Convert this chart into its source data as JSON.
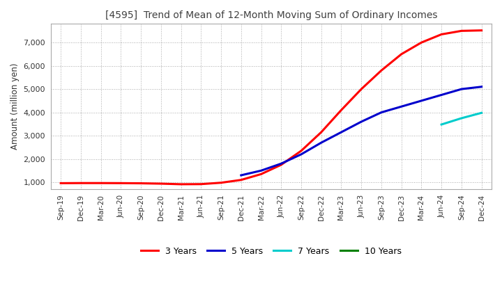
{
  "title": "[4595]  Trend of Mean of 12-Month Moving Sum of Ordinary Incomes",
  "ylabel": "Amount (million yen)",
  "background_color": "#ffffff",
  "grid_color": "#aaaaaa",
  "title_color": "#404040",
  "ylim": [
    700,
    7800
  ],
  "yticks": [
    1000,
    2000,
    3000,
    4000,
    5000,
    6000,
    7000
  ],
  "lines": [
    {
      "label": "3 Years",
      "color": "#ff0000",
      "data": [
        [
          "Sep-19",
          960
        ],
        [
          "Dec-19",
          965
        ],
        [
          "Mar-20",
          965
        ],
        [
          "Jun-20",
          962
        ],
        [
          "Sep-20",
          955
        ],
        [
          "Dec-20",
          940
        ],
        [
          "Mar-21",
          915
        ],
        [
          "Jun-21",
          920
        ],
        [
          "Sep-21",
          980
        ],
        [
          "Dec-21",
          1100
        ],
        [
          "Mar-22",
          1350
        ],
        [
          "Jun-22",
          1750
        ],
        [
          "Sep-22",
          2350
        ],
        [
          "Dec-22",
          3150
        ],
        [
          "Mar-23",
          4100
        ],
        [
          "Jun-23",
          5000
        ],
        [
          "Sep-23",
          5800
        ],
        [
          "Dec-23",
          6500
        ],
        [
          "Mar-24",
          7000
        ],
        [
          "Jun-24",
          7350
        ],
        [
          "Sep-24",
          7500
        ],
        [
          "Dec-24",
          7520
        ]
      ]
    },
    {
      "label": "5 Years",
      "color": "#0000cc",
      "data": [
        [
          "Dec-21",
          1300
        ],
        [
          "Mar-22",
          1500
        ],
        [
          "Jun-22",
          1800
        ],
        [
          "Sep-22",
          2200
        ],
        [
          "Dec-22",
          2700
        ],
        [
          "Mar-23",
          3150
        ],
        [
          "Jun-23",
          3600
        ],
        [
          "Sep-23",
          4000
        ],
        [
          "Dec-23",
          4250
        ],
        [
          "Mar-24",
          4500
        ],
        [
          "Jun-24",
          4750
        ],
        [
          "Sep-24",
          5000
        ],
        [
          "Dec-24",
          5100
        ]
      ]
    },
    {
      "label": "7 Years",
      "color": "#00cccc",
      "data": [
        [
          "Jun-24",
          3480
        ],
        [
          "Sep-24",
          3750
        ],
        [
          "Dec-24",
          3980
        ]
      ]
    },
    {
      "label": "10 Years",
      "color": "#008000",
      "data": []
    }
  ],
  "xtick_labels": [
    "Sep-19",
    "Dec-19",
    "Mar-20",
    "Jun-20",
    "Sep-20",
    "Dec-20",
    "Mar-21",
    "Jun-21",
    "Sep-21",
    "Dec-21",
    "Mar-22",
    "Jun-22",
    "Sep-22",
    "Dec-22",
    "Mar-23",
    "Jun-23",
    "Sep-23",
    "Dec-23",
    "Mar-24",
    "Jun-24",
    "Sep-24",
    "Dec-24"
  ]
}
